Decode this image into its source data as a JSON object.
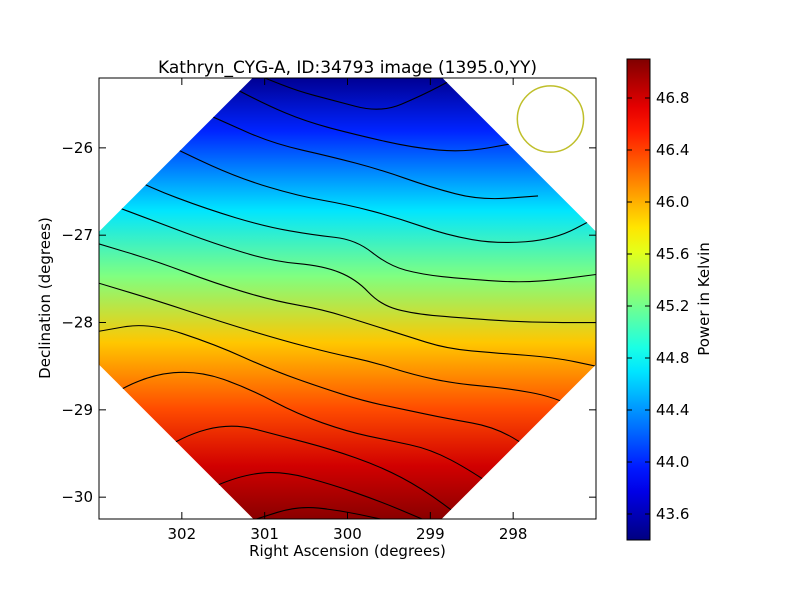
{
  "chart_data": {
    "type": "heatmap",
    "title": "Kathryn_CYG-A, ID:34793 image (1395.0,YY)",
    "xlabel": "Right Ascension (degrees)",
    "ylabel": "Declination (degrees)",
    "colorbar_label": "Power in Kelvin",
    "xlim": [
      303.0,
      297.0
    ],
    "ylim": [
      -30.25,
      -25.2
    ],
    "x_ticks": [
      302,
      301,
      300,
      299,
      298
    ],
    "x_tick_labels": [
      "302",
      "301",
      "300",
      "299",
      "298"
    ],
    "y_ticks": [
      -26,
      -27,
      -28,
      -29,
      -30
    ],
    "y_tick_labels": [
      "−26",
      "−27",
      "−28",
      "−29",
      "−30"
    ],
    "colorbar_range": [
      43.4,
      47.1
    ],
    "colorbar_ticks": [
      43.6,
      44.0,
      44.4,
      44.8,
      45.2,
      45.6,
      46.0,
      46.4,
      46.8
    ],
    "colorbar_tick_labels": [
      "43.6",
      "44.0",
      "44.4",
      "44.8",
      "45.2",
      "45.6",
      "46.0",
      "46.4",
      "46.8"
    ],
    "colormap": "jet",
    "footprint_center": [
      300.0,
      -27.72
    ],
    "min_region": {
      "ra": 299.3,
      "dec": -25.3,
      "value": 43.5
    },
    "max_region": {
      "ra": 300.2,
      "dec": -30.3,
      "value": 47.0
    },
    "contour_lines": [
      {
        "ra": [
          301.0,
          300.6,
          300.2,
          299.6,
          299.1,
          298.7
        ],
        "dec": [
          -25.2,
          -25.35,
          -25.45,
          -25.6,
          -25.4,
          -25.2
        ]
      },
      {
        "ra": [
          301.6,
          301.0,
          300.5,
          299.9,
          299.2,
          298.6,
          298.0
        ],
        "dec": [
          -25.2,
          -25.5,
          -25.7,
          -25.85,
          -26.0,
          -26.05,
          -25.95
        ]
      },
      {
        "ra": [
          302.2,
          301.5,
          300.9,
          300.2,
          299.6,
          299.0,
          298.4,
          297.7
        ],
        "dec": [
          -25.4,
          -25.7,
          -25.95,
          -26.1,
          -26.25,
          -26.45,
          -26.6,
          -26.55
        ]
      },
      {
        "ra": [
          302.6,
          302.0,
          301.3,
          300.6,
          300.0,
          299.4,
          298.8,
          298.2,
          297.5,
          297.0
        ],
        "dec": [
          -25.75,
          -26.05,
          -26.35,
          -26.55,
          -26.65,
          -26.8,
          -27.0,
          -27.1,
          -27.05,
          -26.8
        ]
      },
      {
        "ra": [
          303.0,
          302.4,
          301.7,
          301.0,
          300.4,
          299.9,
          299.5,
          299.1,
          298.6,
          297.8,
          297.0
        ],
        "dec": [
          -26.15,
          -26.45,
          -26.7,
          -26.9,
          -27.0,
          -27.05,
          -27.35,
          -27.45,
          -27.5,
          -27.55,
          -27.45
        ]
      },
      {
        "ra": [
          303.0,
          302.3,
          301.6,
          300.9,
          300.3,
          299.9,
          299.6,
          299.2,
          298.6,
          297.8,
          297.0
        ],
        "dec": [
          -26.6,
          -26.85,
          -27.1,
          -27.3,
          -27.35,
          -27.5,
          -27.8,
          -27.9,
          -27.95,
          -28.0,
          -28.0
        ]
      },
      {
        "ra": [
          303.0,
          302.3,
          301.6,
          300.9,
          300.3,
          299.8,
          299.3,
          298.8,
          298.2,
          297.5,
          297.0
        ],
        "dec": [
          -27.1,
          -27.3,
          -27.55,
          -27.75,
          -27.85,
          -28.0,
          -28.15,
          -28.3,
          -28.35,
          -28.4,
          -28.5
        ]
      },
      {
        "ra": [
          303.0,
          302.3,
          301.5,
          300.8,
          300.2,
          299.7,
          299.2,
          298.7,
          298.1,
          297.5,
          297.0
        ],
        "dec": [
          -27.55,
          -27.75,
          -28.0,
          -28.2,
          -28.35,
          -28.45,
          -28.6,
          -28.7,
          -28.75,
          -28.85,
          -29.1
        ]
      },
      {
        "ra": [
          303.0,
          302.4,
          301.6,
          300.9,
          300.3,
          299.8,
          299.3,
          298.8,
          298.2,
          297.7,
          297.2
        ],
        "dec": [
          -28.1,
          -28.0,
          -28.25,
          -28.55,
          -28.75,
          -28.9,
          -29.0,
          -29.1,
          -29.2,
          -29.5,
          -29.8
        ]
      },
      {
        "ra": [
          303.0,
          302.4,
          301.8,
          301.2,
          300.6,
          300.0,
          299.5,
          299.0,
          298.5,
          297.9
        ],
        "dec": [
          -28.9,
          -28.6,
          -28.55,
          -28.75,
          -29.05,
          -29.25,
          -29.35,
          -29.45,
          -29.7,
          -30.1
        ]
      },
      {
        "ra": [
          302.6,
          302.0,
          301.4,
          300.8,
          300.2,
          299.6,
          299.1,
          298.6
        ],
        "dec": [
          -29.7,
          -29.3,
          -29.15,
          -29.3,
          -29.45,
          -29.65,
          -29.9,
          -30.25
        ]
      },
      {
        "ra": [
          301.9,
          301.3,
          300.8,
          300.2,
          299.6,
          299.1
        ],
        "dec": [
          -30.0,
          -29.75,
          -29.7,
          -29.85,
          -30.05,
          -30.25
        ]
      },
      {
        "ra": [
          301.1,
          300.6,
          300.1,
          299.6
        ],
        "dec": [
          -30.25,
          -30.1,
          -30.15,
          -30.25
        ]
      }
    ],
    "beam_circle": {
      "ra": 297.55,
      "dec": -25.67,
      "radius_deg": 0.4,
      "color": "#bfbf2a"
    }
  }
}
